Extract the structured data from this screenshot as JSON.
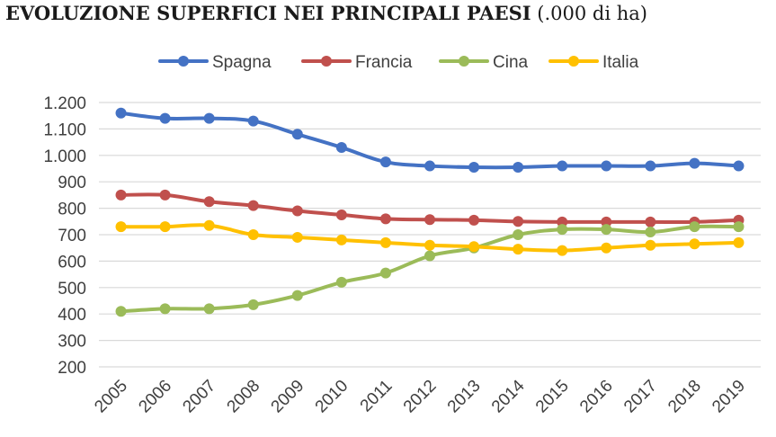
{
  "chart_data": {
    "type": "line",
    "title": "EVOLUZIONE SUPERFICI NEI PRINCIPALI PAESI",
    "subtitle": "(.000 di ha)",
    "xlabel": "",
    "ylabel": "",
    "x": [
      "2005",
      "2006",
      "2007",
      "2008",
      "2009",
      "2010",
      "2011",
      "2012",
      "2013",
      "2014",
      "2015",
      "2016",
      "2017",
      "2018",
      "2019"
    ],
    "yticks": [
      "1.200",
      "1.100",
      "1.000",
      "900",
      "800",
      "700",
      "600",
      "500",
      "400",
      "300",
      "200"
    ],
    "ylim": [
      200,
      1200
    ],
    "grid": "horizontal",
    "legend": "top",
    "series": [
      {
        "name": "Spagna",
        "color": "#4472c4",
        "values": [
          1160,
          1140,
          1140,
          1130,
          1080,
          1030,
          975,
          960,
          955,
          955,
          960,
          960,
          960,
          970,
          960
        ]
      },
      {
        "name": "Francia",
        "color": "#c0504d",
        "values": [
          850,
          850,
          825,
          810,
          790,
          775,
          760,
          757,
          755,
          750,
          748,
          748,
          748,
          748,
          755
        ]
      },
      {
        "name": "Cina",
        "color": "#9bbb59",
        "values": [
          410,
          420,
          420,
          435,
          470,
          520,
          555,
          620,
          650,
          700,
          720,
          720,
          710,
          730,
          730
        ]
      },
      {
        "name": "Italia",
        "color": "#ffc000",
        "values": [
          730,
          730,
          735,
          700,
          690,
          680,
          670,
          660,
          655,
          645,
          640,
          650,
          660,
          665,
          670
        ]
      }
    ]
  }
}
